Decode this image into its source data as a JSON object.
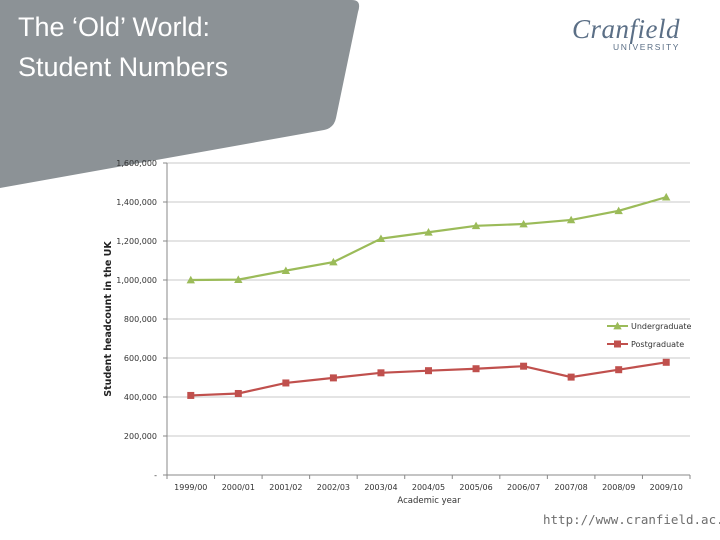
{
  "slide": {
    "title_line1": "The ‘Old’ World:",
    "title_line2": "Student Numbers",
    "logo_word": "Cranfield",
    "logo_sub": "UNIVERSITY",
    "url": "http://www.cranfield.ac.uk"
  },
  "colors": {
    "header_gray": "#8c9296",
    "undergraduate": "#9bbb59",
    "postgraduate": "#c0504d",
    "gridline": "#c8c8c8"
  },
  "chart_data": {
    "type": "line",
    "xlabel": "Academic year",
    "ylabel": "Student headcount in the UK",
    "ylim": [
      0,
      1600000
    ],
    "yticks": [
      0,
      200000,
      400000,
      600000,
      800000,
      1000000,
      1200000,
      1400000,
      1600000
    ],
    "ytick_labels": [
      "-",
      "200,000",
      "400,000",
      "600,000",
      "800,000",
      "1,000,000",
      "1,200,000",
      "1,400,000",
      "1,600,000"
    ],
    "categories": [
      "1999/00",
      "2000/01",
      "2001/02",
      "2002/03",
      "2003/04",
      "2004/05",
      "2005/06",
      "2006/07",
      "2007/08",
      "2008/09",
      "2009/10"
    ],
    "grid": true,
    "legend_position": "right",
    "series": [
      {
        "name": "Undergraduate",
        "marker": "triangle",
        "color": "#9bbb59",
        "values": [
          1000000,
          1002000,
          1048000,
          1092000,
          1212000,
          1245000,
          1278000,
          1287000,
          1308000,
          1355000,
          1425000
        ]
      },
      {
        "name": "Postgraduate",
        "marker": "square",
        "color": "#c0504d",
        "values": [
          408000,
          418000,
          472000,
          498000,
          524000,
          535000,
          545000,
          558000,
          502000,
          540000,
          578000
        ]
      }
    ]
  }
}
